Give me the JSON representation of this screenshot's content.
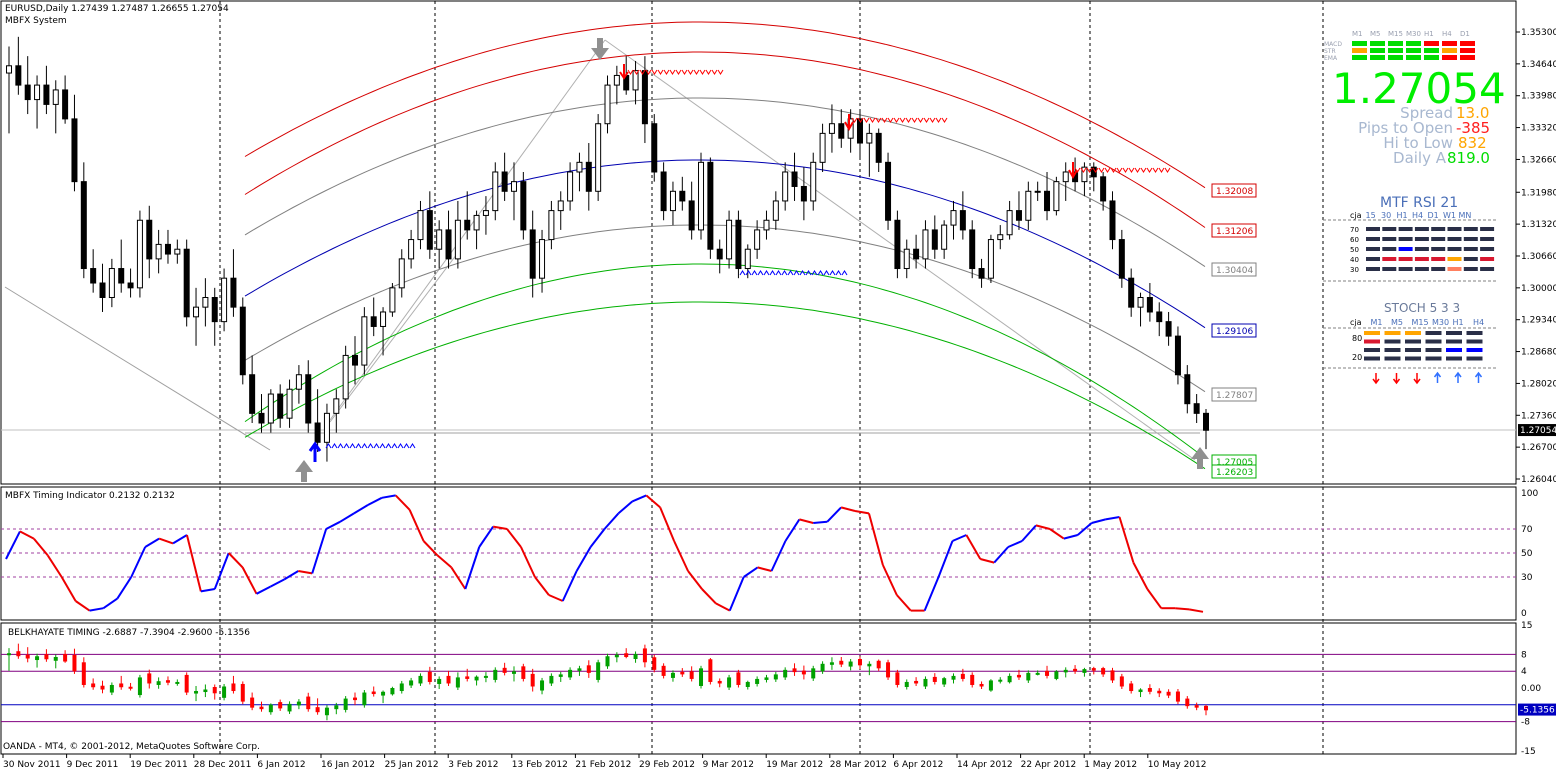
{
  "header": {
    "symbol_line": "EURUSD,Daily  1.27439 1.27487 1.26655 1.27054",
    "system": "MBFX System"
  },
  "footer": {
    "copyright": "OANDA - MT4, © 2001-2012, MetaQuotes Software Corp."
  },
  "colors": {
    "bull": "#ffffff",
    "bear": "#000000",
    "red_band": "#d40000",
    "blue_mid": "#0000b0",
    "green_band": "#00b000",
    "grey_band": "#808080",
    "timing_blue": "#0000ff",
    "timing_red": "#ee0000",
    "timing_orange": "#ffa500",
    "hist_green": "#00a000",
    "hist_red": "#ff0000"
  },
  "x_dates": [
    "30 Nov 2011",
    "9 Dec 2011",
    "19 Dec 2011",
    "28 Dec 2011",
    "6 Jan 2012",
    "16 Jan 2012",
    "25 Jan 2012",
    "3 Feb 2012",
    "13 Feb 2012",
    "21 Feb 2012",
    "29 Feb 2012",
    "9 Mar 2012",
    "19 Mar 2012",
    "28 Mar 2012",
    "6 Apr 2012",
    "14 Apr 2012",
    "22 Apr 2012",
    "1 May 2012",
    "10 May 2012"
  ],
  "price_axis": {
    "ticks": [
      "1.35300",
      "1.34640",
      "1.33980",
      "1.33320",
      "1.32660",
      "1.31980",
      "1.31320",
      "1.30660",
      "1.30000",
      "1.29340",
      "1.28680",
      "1.28020",
      "1.27360",
      "1.26700",
      "1.26040"
    ],
    "current": "1.27054"
  },
  "band_labels": [
    {
      "value": "1.32008",
      "color": "#d40000"
    },
    {
      "value": "1.31206",
      "color": "#d40000"
    },
    {
      "value": "1.30404",
      "color": "#808080"
    },
    {
      "value": "1.29106",
      "color": "#0000b0"
    },
    {
      "value": "1.27807",
      "color": "#808080"
    },
    {
      "value": "1.27005",
      "color": "#00b000"
    },
    {
      "value": "1.26203",
      "color": "#00b000"
    }
  ],
  "dashboard": {
    "tf_labels": [
      "M1",
      "M5",
      "M15",
      "M30",
      "H1",
      "H4",
      "D1"
    ],
    "row_labels": [
      "MACD",
      "STR",
      "EMA"
    ],
    "big_price": "1.27054",
    "spread_label": "Spread",
    "spread_value": "13.0",
    "pips_open_label": "Pips to Open",
    "pips_open_value": "-385",
    "hi_low_label": "Hi to Low",
    "hi_low_value": "832",
    "daily_label": "Daily A",
    "daily_value": "819.0",
    "rsi_title": "MTF RSI  21",
    "rsi_cols": [
      "cja",
      "15",
      "30",
      "H1",
      "H4",
      "D1",
      "W1",
      "MN"
    ],
    "rsi_levels": [
      "70",
      "60",
      "50",
      "40",
      "30"
    ],
    "stoch_title": "STOCH   5 3 3",
    "stoch_cols": [
      "cja",
      "M1",
      "M5",
      "M15",
      "M30",
      "H1",
      "H4"
    ],
    "stoch_levels": [
      "80",
      "20"
    ]
  },
  "timing": {
    "title": "MBFX Timing Indicator 0.2132 0.2132",
    "ticks": [
      "100",
      "70",
      "50",
      "30",
      "0"
    ]
  },
  "belkhayate": {
    "title": "BELKHAYATE TIMING  -2.6887 -7.3904 -2.9600 -5.1356",
    "ticks": [
      "15",
      "8",
      "4",
      "0.00",
      "-8",
      "-15"
    ],
    "current": "-5.1356"
  },
  "chart_data": {
    "type": "candlestick",
    "title": "EURUSD,Daily",
    "ohlc": [
      [
        1.3445,
        1.35,
        1.332,
        1.346
      ],
      [
        1.346,
        1.352,
        1.34,
        1.342
      ],
      [
        1.342,
        1.348,
        1.336,
        1.339
      ],
      [
        1.339,
        1.344,
        1.333,
        1.342
      ],
      [
        1.342,
        1.346,
        1.336,
        1.338
      ],
      [
        1.338,
        1.343,
        1.332,
        1.341
      ],
      [
        1.341,
        1.344,
        1.334,
        1.335
      ],
      [
        1.335,
        1.34,
        1.32,
        1.322
      ],
      [
        1.322,
        1.326,
        1.302,
        1.304
      ],
      [
        1.304,
        1.308,
        1.299,
        1.301
      ],
      [
        1.301,
        1.305,
        1.295,
        1.298
      ],
      [
        1.298,
        1.306,
        1.296,
        1.304
      ],
      [
        1.304,
        1.31,
        1.299,
        1.301
      ],
      [
        1.301,
        1.304,
        1.298,
        1.3
      ],
      [
        1.3,
        1.316,
        1.298,
        1.314
      ],
      [
        1.314,
        1.317,
        1.302,
        1.306
      ],
      [
        1.306,
        1.312,
        1.303,
        1.309
      ],
      [
        1.309,
        1.312,
        1.305,
        1.307
      ],
      [
        1.307,
        1.31,
        1.305,
        1.308
      ],
      [
        1.308,
        1.31,
        1.292,
        1.294
      ],
      [
        1.294,
        1.3,
        1.288,
        1.296
      ],
      [
        1.296,
        1.302,
        1.292,
        1.298
      ],
      [
        1.298,
        1.3,
        1.288,
        1.293
      ],
      [
        1.293,
        1.304,
        1.291,
        1.302
      ],
      [
        1.302,
        1.308,
        1.294,
        1.296
      ],
      [
        1.296,
        1.298,
        1.28,
        1.282
      ],
      [
        1.282,
        1.286,
        1.272,
        1.274
      ],
      [
        1.274,
        1.278,
        1.27,
        1.272
      ],
      [
        1.272,
        1.279,
        1.27,
        1.278
      ],
      [
        1.278,
        1.28,
        1.271,
        1.273
      ],
      [
        1.273,
        1.281,
        1.271,
        1.279
      ],
      [
        1.279,
        1.284,
        1.276,
        1.282
      ],
      [
        1.282,
        1.285,
        1.27,
        1.272
      ],
      [
        1.272,
        1.279,
        1.266,
        1.268
      ],
      [
        1.268,
        1.276,
        1.264,
        1.274
      ],
      [
        1.274,
        1.279,
        1.27,
        1.277
      ],
      [
        1.277,
        1.288,
        1.275,
        1.286
      ],
      [
        1.286,
        1.29,
        1.28,
        1.284
      ],
      [
        1.284,
        1.296,
        1.282,
        1.294
      ],
      [
        1.294,
        1.298,
        1.29,
        1.292
      ],
      [
        1.292,
        1.296,
        1.286,
        1.295
      ],
      [
        1.295,
        1.301,
        1.294,
        1.3
      ],
      [
        1.3,
        1.308,
        1.298,
        1.306
      ],
      [
        1.306,
        1.312,
        1.304,
        1.31
      ],
      [
        1.31,
        1.318,
        1.308,
        1.316
      ],
      [
        1.316,
        1.32,
        1.306,
        1.308
      ],
      [
        1.308,
        1.314,
        1.304,
        1.312
      ],
      [
        1.312,
        1.316,
        1.304,
        1.306
      ],
      [
        1.306,
        1.318,
        1.304,
        1.314
      ],
      [
        1.314,
        1.32,
        1.31,
        1.312
      ],
      [
        1.312,
        1.316,
        1.308,
        1.315
      ],
      [
        1.315,
        1.319,
        1.311,
        1.316
      ],
      [
        1.316,
        1.326,
        1.314,
        1.324
      ],
      [
        1.324,
        1.328,
        1.318,
        1.32
      ],
      [
        1.32,
        1.326,
        1.314,
        1.322
      ],
      [
        1.322,
        1.324,
        1.31,
        1.312
      ],
      [
        1.312,
        1.316,
        1.298,
        1.302
      ],
      [
        1.302,
        1.312,
        1.299,
        1.31
      ],
      [
        1.31,
        1.318,
        1.308,
        1.316
      ],
      [
        1.316,
        1.32,
        1.312,
        1.318
      ],
      [
        1.318,
        1.326,
        1.316,
        1.324
      ],
      [
        1.324,
        1.328,
        1.32,
        1.326
      ],
      [
        1.326,
        1.33,
        1.316,
        1.32
      ],
      [
        1.32,
        1.336,
        1.318,
        1.334
      ],
      [
        1.334,
        1.344,
        1.332,
        1.342
      ],
      [
        1.342,
        1.346,
        1.338,
        1.344
      ],
      [
        1.344,
        1.348,
        1.34,
        1.341
      ],
      [
        1.341,
        1.347,
        1.338,
        1.345
      ],
      [
        1.345,
        1.348,
        1.33,
        1.334
      ],
      [
        1.334,
        1.336,
        1.322,
        1.324
      ],
      [
        1.324,
        1.326,
        1.314,
        1.316
      ],
      [
        1.316,
        1.322,
        1.313,
        1.32
      ],
      [
        1.32,
        1.323,
        1.316,
        1.318
      ],
      [
        1.318,
        1.322,
        1.31,
        1.312
      ],
      [
        1.312,
        1.328,
        1.31,
        1.326
      ],
      [
        1.326,
        1.327,
        1.306,
        1.308
      ],
      [
        1.308,
        1.31,
        1.303,
        1.306
      ],
      [
        1.306,
        1.316,
        1.304,
        1.314
      ],
      [
        1.314,
        1.316,
        1.302,
        1.304
      ],
      [
        1.304,
        1.309,
        1.302,
        1.308
      ],
      [
        1.308,
        1.314,
        1.306,
        1.312
      ],
      [
        1.312,
        1.316,
        1.31,
        1.314
      ],
      [
        1.314,
        1.32,
        1.312,
        1.318
      ],
      [
        1.318,
        1.326,
        1.316,
        1.324
      ],
      [
        1.324,
        1.328,
        1.318,
        1.321
      ],
      [
        1.321,
        1.325,
        1.314,
        1.318
      ],
      [
        1.318,
        1.328,
        1.316,
        1.326
      ],
      [
        1.326,
        1.334,
        1.324,
        1.332
      ],
      [
        1.332,
        1.338,
        1.328,
        1.334
      ],
      [
        1.334,
        1.337,
        1.329,
        1.331
      ],
      [
        1.331,
        1.337,
        1.328,
        1.335
      ],
      [
        1.335,
        1.337,
        1.327,
        1.33
      ],
      [
        1.33,
        1.334,
        1.323,
        1.332
      ],
      [
        1.332,
        1.333,
        1.324,
        1.326
      ],
      [
        1.326,
        1.328,
        1.312,
        1.314
      ],
      [
        1.314,
        1.316,
        1.302,
        1.304
      ],
      [
        1.304,
        1.31,
        1.302,
        1.308
      ],
      [
        1.308,
        1.311,
        1.304,
        1.306
      ],
      [
        1.306,
        1.314,
        1.304,
        1.312
      ],
      [
        1.312,
        1.315,
        1.306,
        1.308
      ],
      [
        1.308,
        1.314,
        1.306,
        1.313
      ],
      [
        1.313,
        1.318,
        1.31,
        1.316
      ],
      [
        1.316,
        1.32,
        1.31,
        1.312
      ],
      [
        1.312,
        1.314,
        1.302,
        1.304
      ],
      [
        1.304,
        1.306,
        1.3,
        1.302
      ],
      [
        1.302,
        1.311,
        1.301,
        1.31
      ],
      [
        1.31,
        1.313,
        1.308,
        1.311
      ],
      [
        1.311,
        1.318,
        1.31,
        1.316
      ],
      [
        1.316,
        1.32,
        1.312,
        1.314
      ],
      [
        1.314,
        1.322,
        1.312,
        1.32
      ],
      [
        1.32,
        1.322,
        1.318,
        1.32
      ],
      [
        1.32,
        1.324,
        1.314,
        1.316
      ],
      [
        1.316,
        1.323,
        1.315,
        1.322
      ],
      [
        1.322,
        1.326,
        1.318,
        1.324
      ],
      [
        1.324,
        1.327,
        1.32,
        1.322
      ],
      [
        1.322,
        1.326,
        1.319,
        1.325
      ],
      [
        1.325,
        1.326,
        1.32,
        1.323
      ],
      [
        1.323,
        1.324,
        1.316,
        1.318
      ],
      [
        1.318,
        1.32,
        1.308,
        1.31
      ],
      [
        1.31,
        1.312,
        1.3,
        1.302
      ],
      [
        1.302,
        1.304,
        1.294,
        1.296
      ],
      [
        1.296,
        1.299,
        1.292,
        1.298
      ],
      [
        1.298,
        1.301,
        1.293,
        1.295
      ],
      [
        1.295,
        1.297,
        1.29,
        1.293
      ],
      [
        1.293,
        1.295,
        1.288,
        1.29
      ],
      [
        1.29,
        1.292,
        1.28,
        1.282
      ],
      [
        1.282,
        1.284,
        1.274,
        1.276
      ],
      [
        1.276,
        1.278,
        1.272,
        1.274
      ],
      [
        1.274,
        1.2749,
        1.2666,
        1.2705
      ]
    ]
  }
}
